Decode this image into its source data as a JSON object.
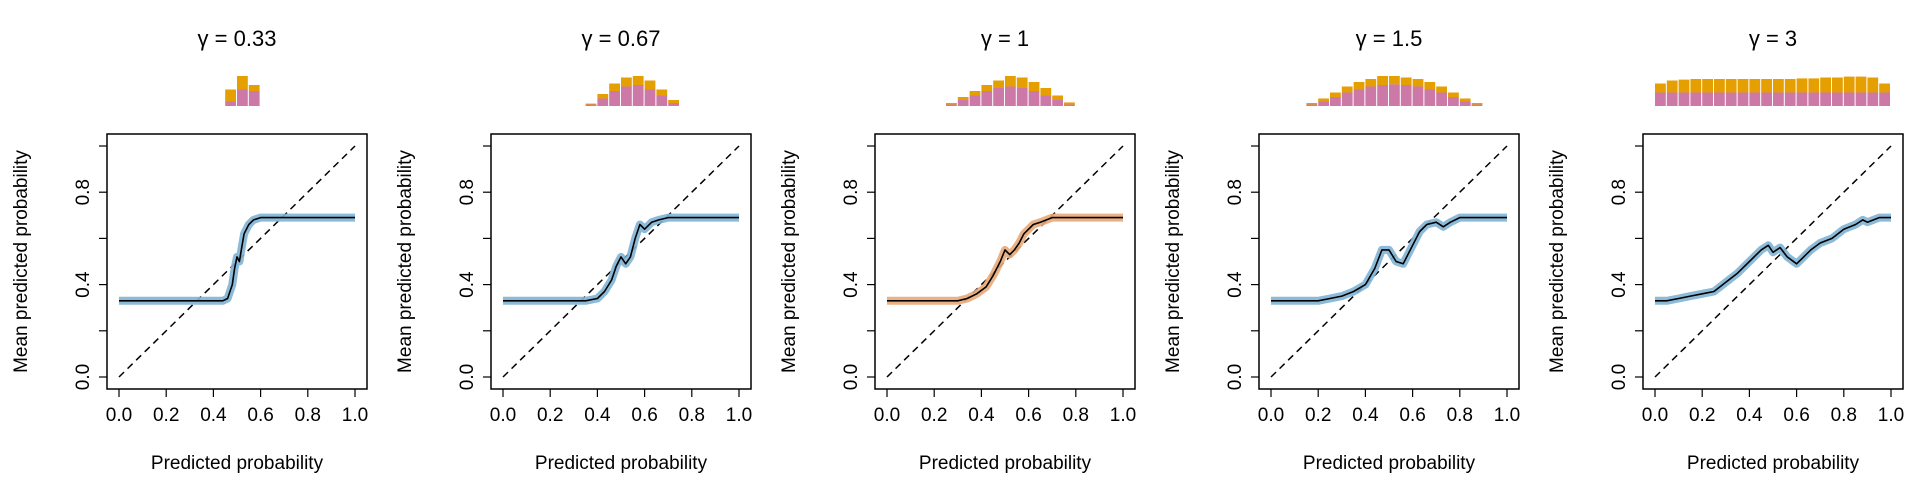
{
  "figure": {
    "xlabel": "Predicted probability",
    "ylabel": "Mean predicted probability",
    "x_ticks": [
      "0.0",
      "0.2",
      "0.4",
      "0.6",
      "0.8",
      "1.0"
    ],
    "y_ticks": [
      "0.0",
      "0.4",
      "0.8"
    ]
  },
  "colors": {
    "blue_band": "#7fb3d5",
    "orange_band": "#e8a878",
    "hist_top": "#e69f00",
    "hist_bottom": "#cc79a7",
    "line": "#000000"
  },
  "chart_data": [
    {
      "type": "line",
      "title": "γ = 0.33",
      "gamma": "0.33",
      "band_color": "blue",
      "xlim": [
        0,
        1
      ],
      "ylim": [
        0,
        1
      ],
      "x": [
        0,
        0.1,
        0.2,
        0.3,
        0.4,
        0.44,
        0.46,
        0.48,
        0.49,
        0.5,
        0.51,
        0.52,
        0.53,
        0.55,
        0.57,
        0.6,
        0.7,
        0.8,
        0.9,
        1.0
      ],
      "y": [
        0.33,
        0.33,
        0.33,
        0.33,
        0.33,
        0.33,
        0.34,
        0.4,
        0.47,
        0.52,
        0.5,
        0.56,
        0.62,
        0.66,
        0.68,
        0.69,
        0.69,
        0.69,
        0.69,
        0.69
      ],
      "reference_line": [
        [
          0,
          0
        ],
        [
          1,
          1
        ]
      ],
      "histogram": {
        "bins": [
          0.45,
          0.5,
          0.55
        ],
        "bottom": [
          0.15,
          0.55,
          0.5
        ],
        "top": [
          0.55,
          1.0,
          0.7
        ]
      }
    },
    {
      "type": "line",
      "title": "γ = 0.67",
      "gamma": "0.67",
      "band_color": "blue",
      "xlim": [
        0,
        1
      ],
      "ylim": [
        0,
        1
      ],
      "x": [
        0,
        0.1,
        0.2,
        0.3,
        0.35,
        0.4,
        0.43,
        0.46,
        0.48,
        0.5,
        0.52,
        0.54,
        0.56,
        0.58,
        0.6,
        0.63,
        0.66,
        0.7,
        0.8,
        0.9,
        1.0
      ],
      "y": [
        0.33,
        0.33,
        0.33,
        0.33,
        0.33,
        0.34,
        0.37,
        0.42,
        0.48,
        0.52,
        0.49,
        0.52,
        0.6,
        0.66,
        0.64,
        0.67,
        0.68,
        0.69,
        0.69,
        0.69,
        0.69
      ],
      "reference_line": [
        [
          0,
          0
        ],
        [
          1,
          1
        ]
      ],
      "histogram": {
        "bins": [
          0.35,
          0.4,
          0.45,
          0.5,
          0.55,
          0.6,
          0.65,
          0.7
        ],
        "bottom": [
          0.05,
          0.25,
          0.5,
          0.65,
          0.7,
          0.55,
          0.35,
          0.1
        ],
        "top": [
          0.08,
          0.4,
          0.75,
          0.95,
          1.0,
          0.85,
          0.55,
          0.2
        ]
      }
    },
    {
      "type": "line",
      "title": "γ = 1",
      "gamma": "1",
      "band_color": "orange",
      "xlim": [
        0,
        1
      ],
      "ylim": [
        0,
        1
      ],
      "x": [
        0,
        0.1,
        0.2,
        0.3,
        0.34,
        0.38,
        0.42,
        0.45,
        0.48,
        0.5,
        0.52,
        0.54,
        0.56,
        0.58,
        0.6,
        0.62,
        0.65,
        0.7,
        0.8,
        0.9,
        1.0
      ],
      "y": [
        0.33,
        0.33,
        0.33,
        0.33,
        0.34,
        0.36,
        0.39,
        0.44,
        0.5,
        0.55,
        0.53,
        0.55,
        0.58,
        0.62,
        0.64,
        0.66,
        0.67,
        0.69,
        0.69,
        0.69,
        0.69
      ],
      "reference_line": [
        [
          0,
          0
        ],
        [
          1,
          1
        ]
      ],
      "histogram": {
        "bins": [
          0.25,
          0.3,
          0.35,
          0.4,
          0.45,
          0.5,
          0.55,
          0.6,
          0.65,
          0.7,
          0.75
        ],
        "bottom": [
          0.05,
          0.2,
          0.35,
          0.5,
          0.6,
          0.65,
          0.6,
          0.5,
          0.35,
          0.2,
          0.05
        ],
        "top": [
          0.1,
          0.3,
          0.5,
          0.7,
          0.85,
          1.0,
          0.95,
          0.8,
          0.6,
          0.35,
          0.12
        ]
      }
    },
    {
      "type": "line",
      "title": "γ = 1.5",
      "gamma": "1.5",
      "band_color": "blue",
      "xlim": [
        0,
        1
      ],
      "ylim": [
        0,
        1
      ],
      "x": [
        0,
        0.1,
        0.2,
        0.25,
        0.3,
        0.35,
        0.4,
        0.44,
        0.47,
        0.5,
        0.53,
        0.56,
        0.6,
        0.63,
        0.66,
        0.7,
        0.73,
        0.76,
        0.8,
        0.9,
        1.0
      ],
      "y": [
        0.33,
        0.33,
        0.33,
        0.34,
        0.35,
        0.37,
        0.4,
        0.47,
        0.55,
        0.55,
        0.5,
        0.49,
        0.57,
        0.63,
        0.66,
        0.67,
        0.65,
        0.67,
        0.69,
        0.69,
        0.69
      ],
      "reference_line": [
        [
          0,
          0
        ],
        [
          1,
          1
        ]
      ],
      "histogram": {
        "bins": [
          0.15,
          0.2,
          0.25,
          0.3,
          0.35,
          0.4,
          0.45,
          0.5,
          0.55,
          0.6,
          0.65,
          0.7,
          0.75,
          0.8,
          0.85
        ],
        "bottom": [
          0.05,
          0.15,
          0.3,
          0.45,
          0.55,
          0.65,
          0.7,
          0.72,
          0.7,
          0.65,
          0.55,
          0.45,
          0.3,
          0.15,
          0.05
        ],
        "top": [
          0.1,
          0.25,
          0.45,
          0.65,
          0.8,
          0.9,
          1.0,
          1.0,
          0.95,
          0.9,
          0.8,
          0.65,
          0.45,
          0.25,
          0.1
        ]
      }
    },
    {
      "type": "line",
      "title": "γ = 3",
      "gamma": "3",
      "band_color": "blue",
      "xlim": [
        0,
        1
      ],
      "ylim": [
        0,
        1
      ],
      "x": [
        0,
        0.05,
        0.1,
        0.15,
        0.2,
        0.25,
        0.3,
        0.35,
        0.4,
        0.45,
        0.48,
        0.5,
        0.53,
        0.56,
        0.6,
        0.63,
        0.66,
        0.7,
        0.75,
        0.8,
        0.85,
        0.88,
        0.9,
        0.95,
        1.0
      ],
      "y": [
        0.33,
        0.33,
        0.34,
        0.35,
        0.36,
        0.37,
        0.41,
        0.45,
        0.5,
        0.55,
        0.57,
        0.54,
        0.56,
        0.52,
        0.49,
        0.52,
        0.55,
        0.58,
        0.6,
        0.64,
        0.66,
        0.68,
        0.67,
        0.69,
        0.69
      ],
      "reference_line": [
        [
          0,
          0
        ],
        [
          1,
          1
        ]
      ],
      "histogram": {
        "bins": [
          0.0,
          0.05,
          0.1,
          0.15,
          0.2,
          0.25,
          0.3,
          0.35,
          0.4,
          0.45,
          0.5,
          0.55,
          0.6,
          0.65,
          0.7,
          0.75,
          0.8,
          0.85,
          0.9,
          0.95
        ],
        "bottom": [
          0.45,
          0.45,
          0.45,
          0.45,
          0.45,
          0.45,
          0.45,
          0.45,
          0.45,
          0.45,
          0.45,
          0.45,
          0.45,
          0.45,
          0.45,
          0.45,
          0.45,
          0.45,
          0.45,
          0.45
        ],
        "top": [
          0.75,
          0.85,
          0.88,
          0.9,
          0.9,
          0.9,
          0.9,
          0.9,
          0.9,
          0.9,
          0.9,
          0.9,
          0.92,
          0.92,
          0.95,
          0.95,
          0.98,
          0.98,
          0.95,
          0.75
        ]
      }
    }
  ]
}
